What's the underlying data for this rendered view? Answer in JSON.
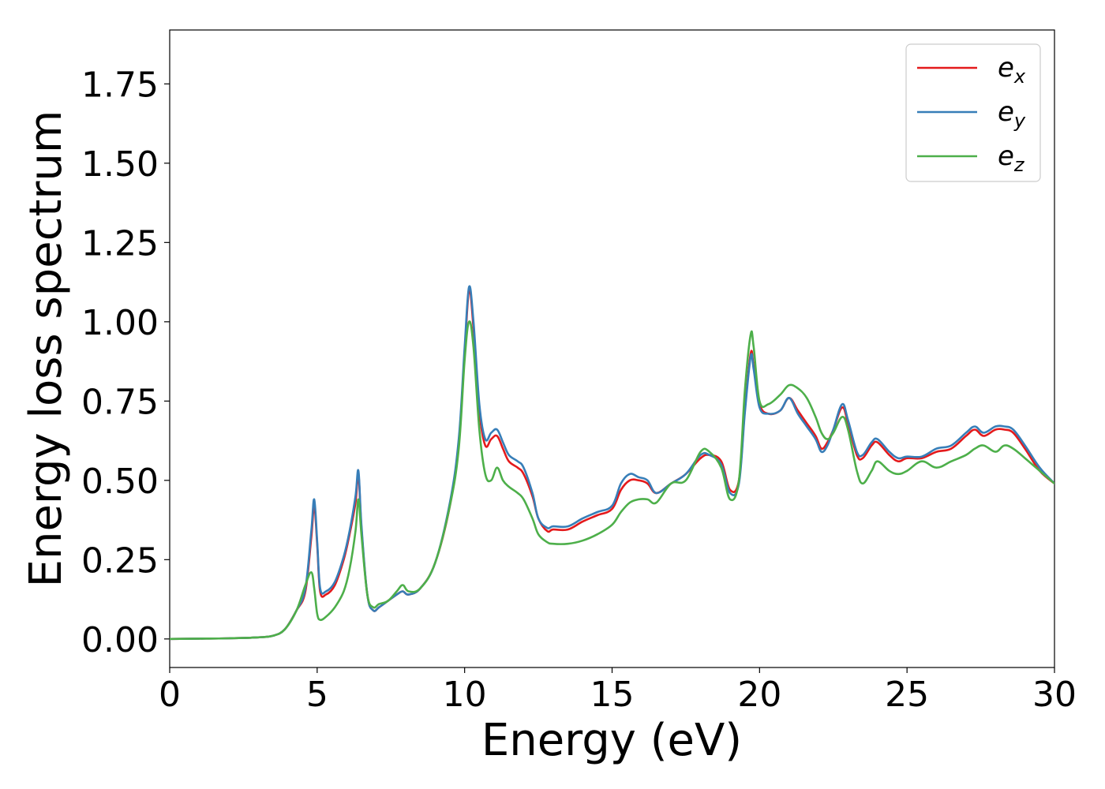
{
  "chart_data": {
    "type": "line",
    "xlabel": "Energy (eV)",
    "ylabel": "Energy loss spectrum",
    "xlim": [
      0,
      30
    ],
    "ylim": [
      -0.09,
      1.92
    ],
    "xticks": [
      0,
      5,
      10,
      15,
      20,
      25,
      30
    ],
    "yticks": [
      0.0,
      0.25,
      0.5,
      0.75,
      1.0,
      1.25,
      1.5,
      1.75
    ],
    "ytick_labels": [
      "0.00",
      "0.25",
      "0.50",
      "0.75",
      "1.00",
      "1.25",
      "1.50",
      "1.75"
    ],
    "xtick_labels": [
      "0",
      "5",
      "10",
      "15",
      "20",
      "25",
      "30"
    ],
    "grid": false,
    "legend_position": "top-right",
    "series": [
      {
        "name": "e_x",
        "legend_main": "e",
        "legend_sub": "x",
        "color": "#e41a1c",
        "x": [
          0,
          1,
          2,
          3,
          3.5,
          3.9,
          4.3,
          4.6,
          4.8,
          4.9,
          5.0,
          5.1,
          5.3,
          5.6,
          5.9,
          6.1,
          6.3,
          6.4,
          6.5,
          6.7,
          6.9,
          7.1,
          7.4,
          7.7,
          7.9,
          8.1,
          8.5,
          9.0,
          9.5,
          9.8,
          10.0,
          10.15,
          10.3,
          10.5,
          10.7,
          10.9,
          11.1,
          11.3,
          11.5,
          11.8,
          12.0,
          12.3,
          12.5,
          12.8,
          13.0,
          13.5,
          14.0,
          14.5,
          15.0,
          15.3,
          15.6,
          15.9,
          16.2,
          16.5,
          17.0,
          17.5,
          18.0,
          18.3,
          18.7,
          19.0,
          19.3,
          19.5,
          19.7,
          19.8,
          20.0,
          20.3,
          20.7,
          21.0,
          21.3,
          21.6,
          21.9,
          22.1,
          22.3,
          22.5,
          22.8,
          23.0,
          23.3,
          23.5,
          23.8,
          24.0,
          24.4,
          24.7,
          25.0,
          25.5,
          26.0,
          26.5,
          27.0,
          27.3,
          27.6,
          28.0,
          28.3,
          28.6,
          29.0,
          29.5,
          30.0
        ],
        "y": [
          0,
          0.001,
          0.002,
          0.005,
          0.01,
          0.03,
          0.09,
          0.15,
          0.32,
          0.42,
          0.3,
          0.15,
          0.14,
          0.17,
          0.25,
          0.33,
          0.43,
          0.52,
          0.35,
          0.14,
          0.09,
          0.1,
          0.12,
          0.14,
          0.15,
          0.14,
          0.16,
          0.24,
          0.42,
          0.62,
          0.9,
          1.1,
          0.98,
          0.72,
          0.61,
          0.63,
          0.64,
          0.6,
          0.56,
          0.54,
          0.52,
          0.45,
          0.38,
          0.34,
          0.345,
          0.345,
          0.37,
          0.39,
          0.41,
          0.47,
          0.5,
          0.5,
          0.49,
          0.46,
          0.49,
          0.52,
          0.57,
          0.58,
          0.56,
          0.47,
          0.5,
          0.72,
          0.9,
          0.86,
          0.74,
          0.71,
          0.72,
          0.76,
          0.72,
          0.68,
          0.64,
          0.6,
          0.62,
          0.66,
          0.73,
          0.68,
          0.58,
          0.57,
          0.61,
          0.62,
          0.58,
          0.56,
          0.57,
          0.57,
          0.59,
          0.6,
          0.64,
          0.66,
          0.64,
          0.66,
          0.66,
          0.65,
          0.6,
          0.53,
          0.49
        ]
      },
      {
        "name": "e_y",
        "legend_main": "e",
        "legend_sub": "y",
        "color": "#377eb8",
        "x": [
          0,
          1,
          2,
          3,
          3.5,
          3.9,
          4.3,
          4.6,
          4.8,
          4.9,
          5.0,
          5.1,
          5.3,
          5.6,
          5.9,
          6.1,
          6.3,
          6.4,
          6.5,
          6.7,
          6.9,
          7.1,
          7.4,
          7.7,
          7.9,
          8.1,
          8.5,
          9.0,
          9.5,
          9.8,
          10.0,
          10.15,
          10.3,
          10.5,
          10.7,
          10.9,
          11.1,
          11.3,
          11.5,
          11.8,
          12.0,
          12.3,
          12.5,
          12.8,
          13.0,
          13.5,
          14.0,
          14.5,
          15.0,
          15.3,
          15.6,
          15.9,
          16.2,
          16.5,
          17.0,
          17.5,
          18.0,
          18.3,
          18.7,
          19.0,
          19.3,
          19.5,
          19.7,
          19.8,
          20.0,
          20.3,
          20.7,
          21.0,
          21.3,
          21.6,
          21.9,
          22.1,
          22.3,
          22.5,
          22.8,
          23.0,
          23.3,
          23.5,
          23.8,
          24.0,
          24.4,
          24.7,
          25.0,
          25.5,
          26.0,
          26.5,
          27.0,
          27.3,
          27.6,
          28.0,
          28.3,
          28.6,
          29.0,
          29.5,
          30.0
        ],
        "y": [
          0,
          0.001,
          0.002,
          0.005,
          0.01,
          0.03,
          0.09,
          0.16,
          0.34,
          0.44,
          0.31,
          0.16,
          0.15,
          0.18,
          0.26,
          0.34,
          0.45,
          0.53,
          0.36,
          0.14,
          0.09,
          0.1,
          0.12,
          0.14,
          0.15,
          0.14,
          0.16,
          0.24,
          0.43,
          0.63,
          0.92,
          1.11,
          1.0,
          0.74,
          0.63,
          0.65,
          0.66,
          0.62,
          0.58,
          0.56,
          0.54,
          0.46,
          0.38,
          0.35,
          0.355,
          0.355,
          0.38,
          0.4,
          0.42,
          0.49,
          0.52,
          0.51,
          0.5,
          0.46,
          0.49,
          0.52,
          0.58,
          0.58,
          0.55,
          0.46,
          0.49,
          0.71,
          0.89,
          0.85,
          0.73,
          0.71,
          0.72,
          0.76,
          0.71,
          0.67,
          0.63,
          0.59,
          0.61,
          0.66,
          0.74,
          0.69,
          0.59,
          0.58,
          0.62,
          0.63,
          0.59,
          0.57,
          0.575,
          0.575,
          0.6,
          0.61,
          0.65,
          0.67,
          0.65,
          0.67,
          0.67,
          0.66,
          0.61,
          0.54,
          0.49
        ]
      },
      {
        "name": "e_z",
        "legend_main": "e",
        "legend_sub": "z",
        "color": "#4daf4a",
        "x": [
          0,
          1,
          2,
          3,
          3.5,
          3.9,
          4.3,
          4.6,
          4.8,
          4.9,
          5.0,
          5.1,
          5.3,
          5.6,
          5.9,
          6.1,
          6.3,
          6.4,
          6.5,
          6.7,
          6.9,
          7.1,
          7.4,
          7.7,
          7.9,
          8.1,
          8.5,
          9.0,
          9.5,
          9.8,
          10.0,
          10.15,
          10.3,
          10.5,
          10.7,
          10.9,
          11.1,
          11.3,
          11.5,
          11.8,
          12.0,
          12.3,
          12.5,
          12.8,
          13.0,
          13.5,
          14.0,
          14.5,
          15.0,
          15.3,
          15.6,
          15.9,
          16.2,
          16.5,
          17.0,
          17.5,
          18.0,
          18.3,
          18.7,
          19.0,
          19.3,
          19.5,
          19.7,
          19.8,
          20.0,
          20.3,
          20.7,
          21.0,
          21.3,
          21.6,
          21.9,
          22.1,
          22.3,
          22.5,
          22.8,
          23.0,
          23.3,
          23.5,
          23.8,
          24.0,
          24.4,
          24.7,
          25.0,
          25.5,
          26.0,
          26.5,
          27.0,
          27.3,
          27.6,
          28.0,
          28.3,
          28.6,
          29.0,
          29.5,
          30.0
        ],
        "y": [
          0,
          0.001,
          0.002,
          0.005,
          0.01,
          0.03,
          0.09,
          0.17,
          0.21,
          0.16,
          0.08,
          0.06,
          0.07,
          0.1,
          0.15,
          0.22,
          0.34,
          0.44,
          0.33,
          0.14,
          0.1,
          0.11,
          0.12,
          0.15,
          0.17,
          0.15,
          0.16,
          0.24,
          0.42,
          0.6,
          0.88,
          1.0,
          0.92,
          0.66,
          0.52,
          0.5,
          0.54,
          0.5,
          0.48,
          0.46,
          0.44,
          0.38,
          0.33,
          0.305,
          0.3,
          0.3,
          0.31,
          0.33,
          0.36,
          0.4,
          0.43,
          0.44,
          0.44,
          0.43,
          0.49,
          0.5,
          0.59,
          0.59,
          0.54,
          0.44,
          0.5,
          0.78,
          0.96,
          0.92,
          0.75,
          0.74,
          0.77,
          0.8,
          0.79,
          0.76,
          0.7,
          0.65,
          0.63,
          0.65,
          0.7,
          0.66,
          0.53,
          0.49,
          0.53,
          0.56,
          0.53,
          0.52,
          0.53,
          0.56,
          0.54,
          0.56,
          0.58,
          0.6,
          0.61,
          0.59,
          0.61,
          0.6,
          0.57,
          0.53,
          0.49
        ]
      }
    ]
  }
}
